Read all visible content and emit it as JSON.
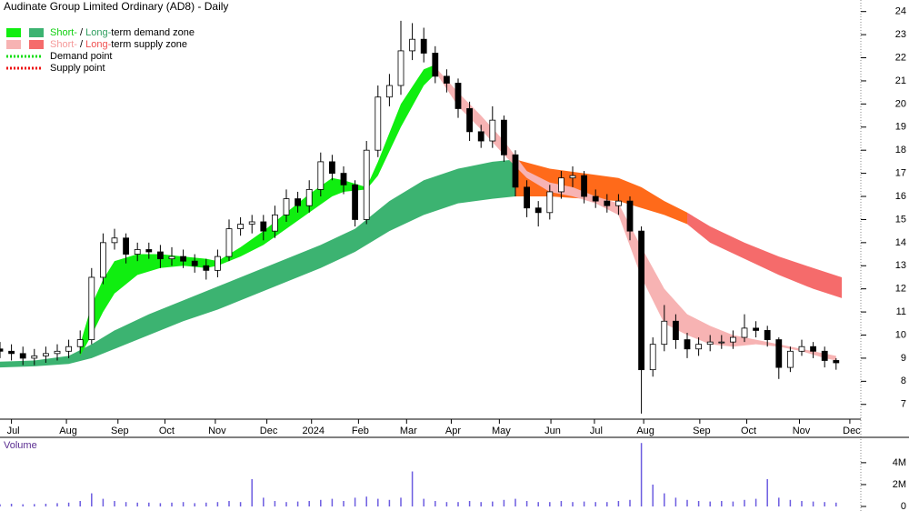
{
  "chart_data": [
    {
      "type": "candlestick",
      "title": "Audinate Group Limited Ordinary (AD8) - Daily",
      "x": [
        0,
        1,
        2,
        3,
        4,
        5,
        6,
        7,
        8,
        9,
        10,
        11,
        12,
        13,
        14,
        15,
        16,
        17,
        18,
        19,
        20,
        21,
        22,
        23,
        24,
        25,
        26,
        27,
        28,
        29,
        30,
        31,
        32,
        33,
        34,
        35,
        36,
        37,
        38,
        39,
        40,
        41,
        42,
        43,
        44,
        45,
        46,
        47,
        48,
        49,
        50,
        51,
        52,
        53,
        54,
        55,
        56,
        57,
        58,
        59,
        60,
        61,
        62,
        63,
        64,
        65,
        66,
        67,
        68,
        69,
        70,
        71,
        72,
        73
      ],
      "open": [
        9.4,
        9.3,
        9.2,
        9.0,
        9.1,
        9.2,
        9.3,
        9.5,
        9.8,
        12.5,
        14.0,
        14.2,
        13.5,
        13.7,
        13.6,
        13.3,
        13.4,
        13.2,
        13.0,
        12.8,
        13.4,
        14.6,
        14.8,
        14.9,
        14.5,
        15.2,
        15.9,
        15.6,
        16.3,
        17.5,
        17.0,
        16.5,
        15.0,
        18.0,
        20.3,
        20.8,
        22.3,
        22.8,
        22.2,
        21.2,
        20.9,
        19.8,
        18.8,
        18.4,
        19.3,
        17.8,
        16.4,
        15.5,
        15.3,
        16.2,
        16.8,
        16.9,
        16.0,
        15.8,
        15.6,
        15.8,
        14.5,
        8.5,
        9.6,
        10.6,
        9.8,
        9.4,
        9.6,
        9.7,
        9.7,
        9.9,
        10.3,
        10.2,
        9.8,
        8.6,
        9.3,
        9.5,
        9.3,
        8.9
      ],
      "high": [
        9.7,
        9.6,
        9.5,
        9.4,
        9.5,
        9.6,
        9.8,
        10.2,
        12.9,
        14.4,
        14.6,
        14.4,
        14.0,
        14.0,
        13.9,
        13.8,
        13.7,
        13.5,
        13.3,
        13.7,
        15.0,
        15.1,
        15.2,
        15.2,
        15.6,
        16.3,
        16.2,
        16.7,
        17.9,
        17.8,
        17.3,
        16.7,
        18.4,
        20.8,
        21.3,
        23.6,
        23.5,
        23.3,
        22.5,
        21.5,
        21.1,
        20.1,
        19.1,
        19.9,
        19.5,
        18.0,
        16.7,
        15.8,
        16.5,
        17.1,
        17.3,
        17.1,
        16.3,
        16.1,
        16.1,
        16.0,
        14.7,
        9.9,
        11.3,
        10.9,
        10.1,
        9.9,
        10.0,
        10.0,
        10.2,
        10.9,
        10.6,
        10.4,
        9.9,
        9.5,
        9.8,
        9.7,
        9.5,
        9.0
      ],
      "low": [
        9.0,
        8.9,
        8.7,
        8.7,
        8.8,
        8.9,
        9.0,
        9.2,
        9.6,
        12.2,
        13.7,
        13.1,
        13.2,
        13.3,
        12.9,
        13.0,
        12.9,
        12.7,
        12.4,
        12.5,
        13.2,
        14.3,
        14.4,
        14.1,
        14.2,
        14.9,
        15.3,
        15.3,
        16.0,
        16.7,
        16.1,
        14.7,
        14.8,
        17.7,
        19.9,
        20.4,
        21.9,
        21.8,
        20.9,
        20.5,
        19.4,
        18.4,
        18.1,
        18.1,
        17.5,
        16.0,
        15.1,
        14.7,
        15.0,
        15.9,
        16.4,
        15.7,
        15.5,
        15.3,
        15.2,
        14.1,
        6.6,
        8.2,
        9.3,
        9.4,
        9.0,
        9.1,
        9.3,
        9.4,
        9.4,
        9.7,
        9.9,
        9.5,
        8.1,
        8.4,
        9.1,
        9.0,
        8.6,
        8.5
      ],
      "close": [
        9.3,
        9.2,
        9.0,
        9.1,
        9.2,
        9.3,
        9.5,
        9.8,
        12.5,
        14.0,
        14.2,
        13.5,
        13.7,
        13.6,
        13.3,
        13.4,
        13.2,
        13.0,
        12.8,
        13.4,
        14.6,
        14.8,
        14.9,
        14.5,
        15.2,
        15.9,
        15.6,
        16.3,
        17.5,
        17.0,
        16.5,
        15.0,
        18.0,
        20.3,
        20.8,
        22.3,
        22.8,
        22.2,
        21.2,
        20.9,
        19.8,
        18.8,
        18.4,
        19.3,
        17.8,
        16.4,
        15.5,
        15.3,
        16.2,
        16.8,
        16.9,
        16.0,
        15.8,
        15.6,
        15.8,
        14.5,
        8.5,
        9.6,
        10.6,
        9.8,
        9.4,
        9.6,
        9.7,
        9.7,
        9.9,
        10.3,
        10.2,
        9.8,
        8.6,
        9.3,
        9.5,
        9.3,
        8.9,
        8.8
      ],
      "zones": [
        {
          "color": "#3cb371",
          "x": [
            0,
            3,
            6,
            8,
            10,
            13,
            16,
            19,
            22,
            25,
            28,
            31,
            34,
            37,
            40,
            43,
            45
          ],
          "upper": [
            8.85,
            8.9,
            9.1,
            9.6,
            10.2,
            10.9,
            11.5,
            12.1,
            12.7,
            13.3,
            13.9,
            14.6,
            15.8,
            16.7,
            17.2,
            17.5,
            17.6
          ],
          "lower": [
            8.6,
            8.65,
            8.75,
            9.0,
            9.4,
            10.0,
            10.6,
            11.1,
            11.7,
            12.3,
            12.9,
            13.6,
            14.5,
            15.2,
            15.7,
            15.9,
            16.0
          ]
        },
        {
          "color": "#10ee10",
          "x": [
            7,
            8,
            9,
            10,
            12,
            14,
            16,
            18,
            19,
            21,
            23,
            25,
            27,
            29,
            30,
            32,
            33,
            35,
            37,
            38
          ],
          "upper": [
            9.6,
            11.3,
            12.4,
            13.2,
            13.5,
            13.5,
            13.4,
            13.3,
            13.2,
            13.8,
            14.5,
            15.3,
            16.1,
            16.8,
            16.7,
            16.4,
            17.5,
            20.0,
            21.5,
            21.7
          ],
          "lower": [
            9.1,
            10.0,
            11.0,
            11.8,
            12.6,
            12.9,
            13.0,
            12.9,
            13.0,
            13.4,
            13.9,
            14.6,
            15.3,
            16.0,
            16.2,
            16.3,
            16.9,
            19.0,
            20.8,
            21.3
          ]
        },
        {
          "color": "#ff6a1a",
          "x": [
            45,
            48,
            51,
            54,
            56,
            58,
            60
          ],
          "upper": [
            17.6,
            17.2,
            17.0,
            16.8,
            16.4,
            15.8,
            15.3
          ],
          "lower": [
            16.0,
            16.0,
            15.9,
            15.8,
            15.5,
            15.2,
            14.8
          ]
        },
        {
          "color": "#f56b6b",
          "x": [
            60,
            62,
            65,
            68,
            71,
            73.5
          ],
          "upper": [
            15.3,
            14.7,
            14.0,
            13.4,
            12.9,
            12.5
          ],
          "lower": [
            14.8,
            14.0,
            13.3,
            12.6,
            12.0,
            11.6
          ]
        },
        {
          "color": "#f7b3b3",
          "x": [
            38,
            40,
            42,
            44,
            46,
            48,
            50,
            52,
            54,
            56,
            58,
            60,
            62,
            64,
            66,
            68,
            70,
            72,
            73
          ],
          "upper": [
            21.6,
            20.5,
            19.5,
            18.4,
            17.1,
            16.6,
            16.4,
            16.0,
            15.7,
            13.8,
            12.0,
            10.9,
            10.4,
            10.0,
            9.8,
            9.6,
            9.4,
            9.2,
            9.1
          ],
          "lower": [
            21.4,
            19.9,
            18.9,
            17.8,
            16.8,
            16.2,
            16.0,
            15.7,
            15.2,
            12.5,
            10.5,
            10.0,
            9.6,
            9.5,
            9.6,
            9.5,
            9.3,
            9.0,
            8.9
          ]
        }
      ],
      "xlim": [
        0,
        75
      ],
      "xticks": [
        {
          "value": 1,
          "label": "Jul"
        },
        {
          "value": 5.8,
          "label": "Aug"
        },
        {
          "value": 10.3,
          "label": "Sep"
        },
        {
          "value": 14.4,
          "label": "Oct"
        },
        {
          "value": 18.8,
          "label": "Nov"
        },
        {
          "value": 23.3,
          "label": "Dec"
        },
        {
          "value": 27.2,
          "label": "2024"
        },
        {
          "value": 31.3,
          "label": "Feb"
        },
        {
          "value": 35.5,
          "label": "Mar"
        },
        {
          "value": 39.4,
          "label": "Apr"
        },
        {
          "value": 43.6,
          "label": "May"
        },
        {
          "value": 48.1,
          "label": "Jun"
        },
        {
          "value": 51.9,
          "label": "Jul"
        },
        {
          "value": 56.2,
          "label": "Aug"
        },
        {
          "value": 61.1,
          "label": "Sep"
        },
        {
          "value": 65.2,
          "label": "Oct"
        },
        {
          "value": 69.8,
          "label": "Nov"
        },
        {
          "value": 74.2,
          "label": "Dec"
        }
      ],
      "ylim": [
        6.4,
        24.5
      ],
      "yticks": [
        7,
        8,
        9,
        10,
        11,
        12,
        13,
        14,
        15,
        16,
        17,
        18,
        19,
        20,
        21,
        22,
        23,
        24
      ],
      "legend": {
        "position": "top-left",
        "entries": [
          {
            "style": "box",
            "swatches": [
              "#10ee10",
              "#3cb371"
            ],
            "parts": [
              "Short-",
              " / ",
              "Long-",
              "term demand zone"
            ],
            "part_colors": [
              "#10d010",
              "#000000",
              "#2e9e5e",
              "#000000"
            ]
          },
          {
            "style": "box",
            "swatches": [
              "#f7b3b3",
              "#f56b6b"
            ],
            "parts": [
              "Short-",
              " / ",
              "Long-",
              "term supply zone"
            ],
            "part_colors": [
              "#f59a9a",
              "#000000",
              "#f05050",
              "#000000"
            ]
          },
          {
            "style": "dotted",
            "swatches": [
              "#10dd10"
            ],
            "parts": [
              "Demand point"
            ],
            "part_colors": [
              "#000000"
            ]
          },
          {
            "style": "dotted",
            "swatches": [
              "#ee1010"
            ],
            "parts": [
              "Supply point"
            ],
            "part_colors": [
              "#000000"
            ]
          }
        ]
      }
    },
    {
      "type": "bar",
      "title": "Volume",
      "x": [
        0,
        1,
        2,
        3,
        4,
        5,
        6,
        7,
        8,
        9,
        10,
        11,
        12,
        13,
        14,
        15,
        16,
        17,
        18,
        19,
        20,
        21,
        22,
        23,
        24,
        25,
        26,
        27,
        28,
        29,
        30,
        31,
        32,
        33,
        34,
        35,
        36,
        37,
        38,
        39,
        40,
        41,
        42,
        43,
        44,
        45,
        46,
        47,
        48,
        49,
        50,
        51,
        52,
        53,
        54,
        55,
        56,
        57,
        58,
        59,
        60,
        61,
        62,
        63,
        64,
        65,
        66,
        67,
        68,
        69,
        70,
        71,
        72,
        73
      ],
      "values": [
        200000,
        250000,
        200000,
        220000,
        250000,
        300000,
        350000,
        500000,
        1200000,
        700000,
        500000,
        400000,
        350000,
        350000,
        300000,
        350000,
        400000,
        300000,
        350000,
        400000,
        500000,
        400000,
        2500000,
        800000,
        500000,
        400000,
        450000,
        500000,
        600000,
        700000,
        500000,
        800000,
        900000,
        700000,
        600000,
        800000,
        3200000,
        700000,
        500000,
        400000,
        400000,
        500000,
        400000,
        450000,
        600000,
        700000,
        500000,
        400000,
        400000,
        500000,
        400000,
        450000,
        400000,
        400000,
        500000,
        600000,
        5800000,
        2000000,
        1200000,
        800000,
        600000,
        500000,
        450000,
        500000,
        450000,
        600000,
        700000,
        2500000,
        800000,
        600000,
        500000,
        450000,
        400000,
        350000
      ],
      "color": "#6c5ce0",
      "xlim": [
        0,
        75
      ],
      "ylim": [
        0,
        6400000
      ],
      "yticks": [
        0,
        {
          "value": 2000000,
          "label": "2M"
        },
        {
          "value": 4000000,
          "label": "4M"
        }
      ]
    }
  ]
}
